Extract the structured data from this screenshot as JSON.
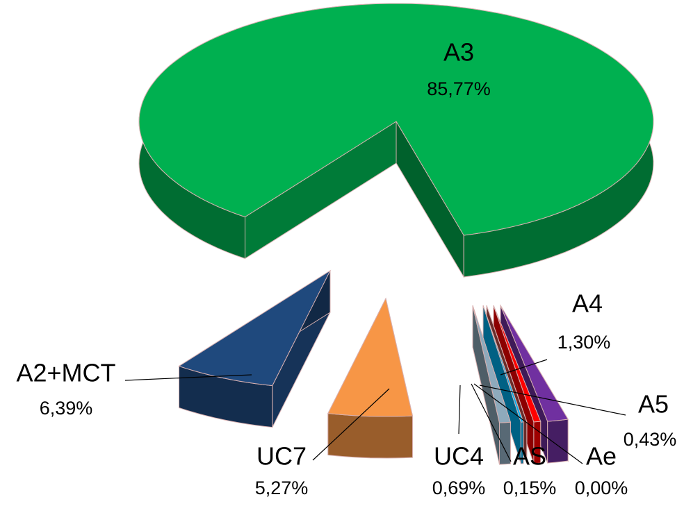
{
  "chart_data": {
    "type": "pie",
    "categories": [
      "A3",
      "A4",
      "A5",
      "Ae",
      "AS",
      "UC4",
      "UC7",
      "A2+MCT"
    ],
    "values": [
      85.77,
      1.3,
      0.43,
      0.0,
      0.15,
      0.69,
      5.27,
      6.39
    ],
    "value_labels": [
      "85,77%",
      "1,30%",
      "0,43%",
      "0,00%",
      "0,15%",
      "0,69%",
      "5,27%",
      "6,39%"
    ],
    "colors": [
      "#00b050",
      "#7030a0",
      "#ff0000",
      "#c0504d",
      "#00b0f0",
      "#8eaabc",
      "#f79646",
      "#1f497d"
    ]
  }
}
